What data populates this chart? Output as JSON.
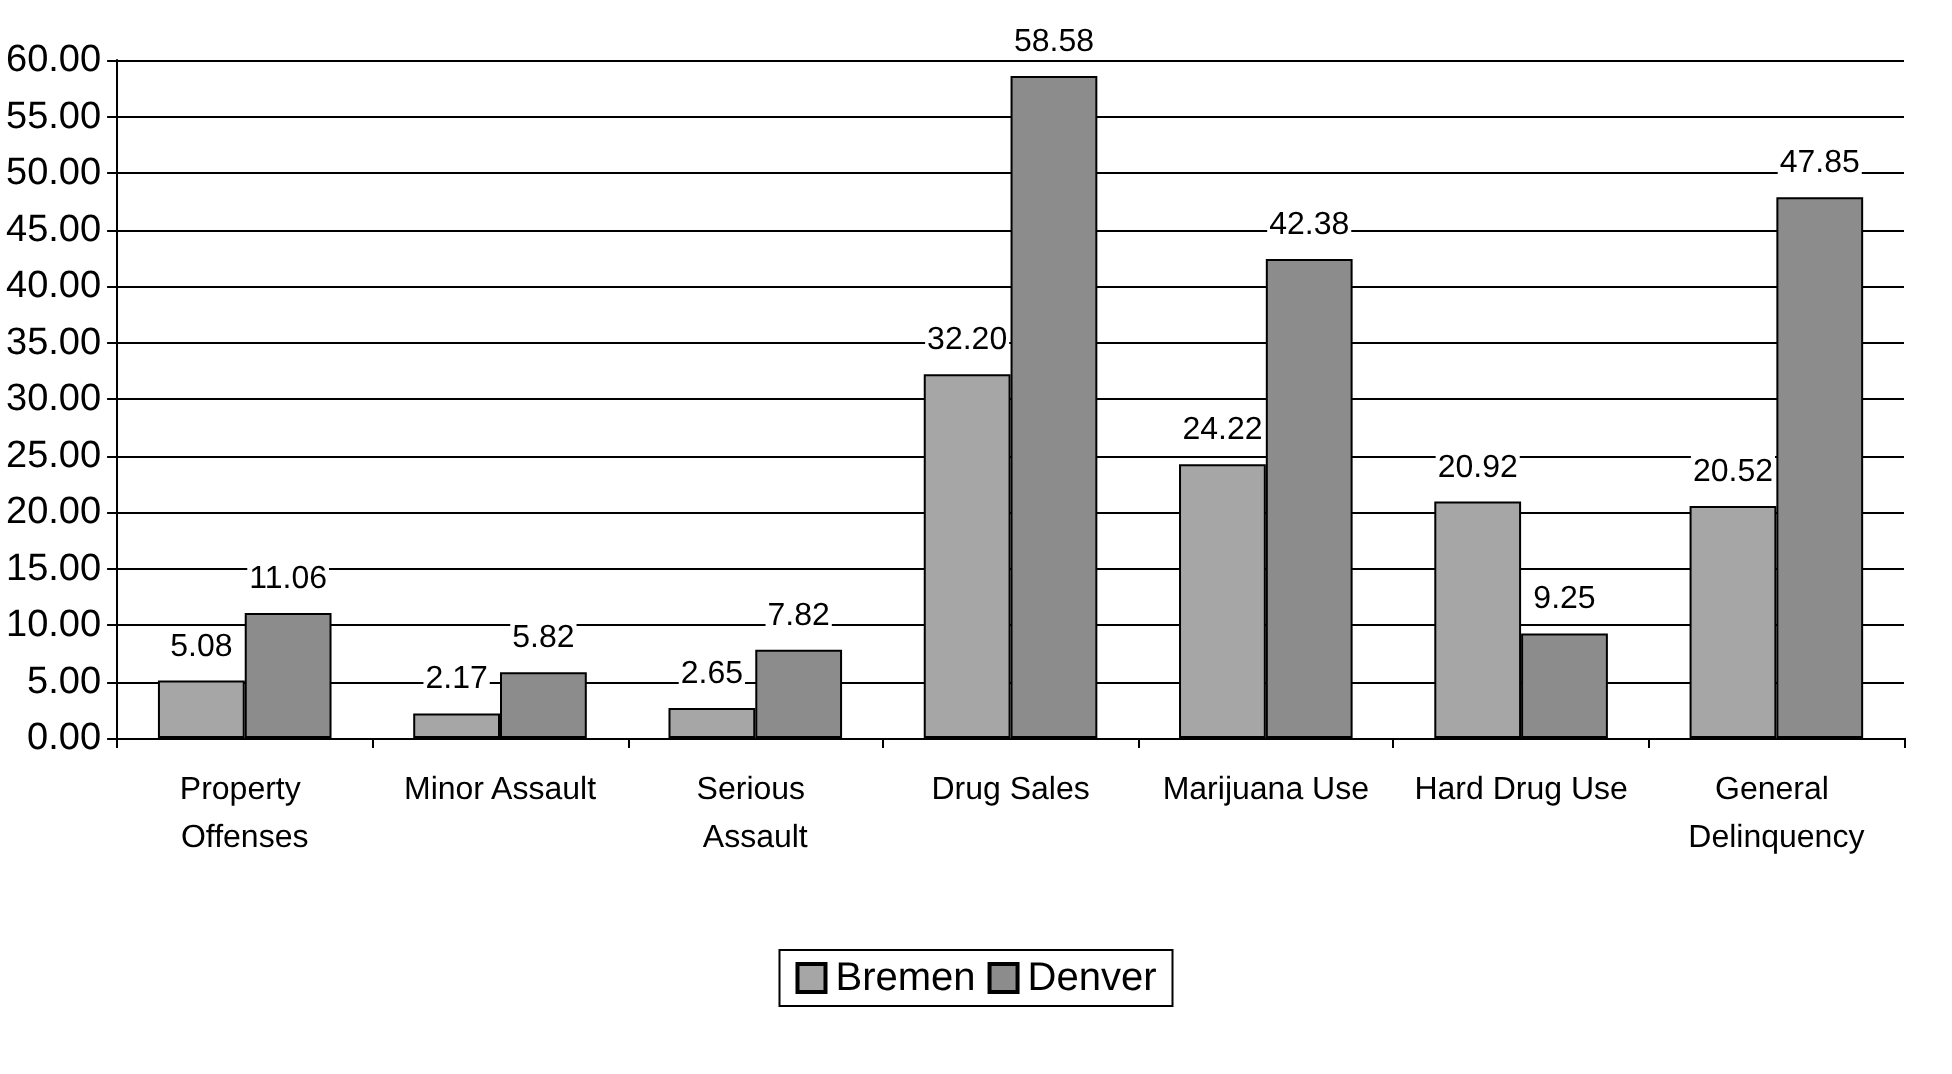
{
  "chart_data": {
    "type": "bar",
    "categories": [
      "Property Offenses",
      "Minor Assault",
      "Serious Assault",
      "Drug Sales",
      "Marijuana Use",
      "Hard Drug Use",
      "General Delinquency"
    ],
    "series": [
      {
        "name": "Bremen",
        "color": "#a6a6a6",
        "values": [
          5.08,
          2.17,
          2.65,
          32.2,
          24.22,
          20.92,
          20.52
        ],
        "value_labels": [
          "5.08",
          "2.17",
          "2.65",
          "32.20",
          "24.22",
          "20.92",
          "20.52"
        ]
      },
      {
        "name": "Denver",
        "color": "#8c8c8c",
        "values": [
          11.06,
          5.82,
          7.82,
          58.58,
          42.38,
          9.25,
          47.85
        ],
        "value_labels": [
          "11.06",
          "5.82",
          "7.82",
          "58.58",
          "42.38",
          "9.25",
          "47.85"
        ]
      }
    ],
    "ylim": [
      0,
      60
    ],
    "yticks": [
      {
        "value": 0,
        "label": "0.00"
      },
      {
        "value": 5,
        "label": "5.00"
      },
      {
        "value": 10,
        "label": "10.00"
      },
      {
        "value": 15,
        "label": "15.00"
      },
      {
        "value": 20,
        "label": "20.00"
      },
      {
        "value": 25,
        "label": "25.00"
      },
      {
        "value": 30,
        "label": "30.00"
      },
      {
        "value": 35,
        "label": "35.00"
      },
      {
        "value": 40,
        "label": "40.00"
      },
      {
        "value": 45,
        "label": "45.00"
      },
      {
        "value": 50,
        "label": "50.00"
      },
      {
        "value": 55,
        "label": "55.00"
      },
      {
        "value": 60,
        "label": "60.00"
      }
    ],
    "grid": "y",
    "legend": "bottom",
    "data_labels": true
  }
}
